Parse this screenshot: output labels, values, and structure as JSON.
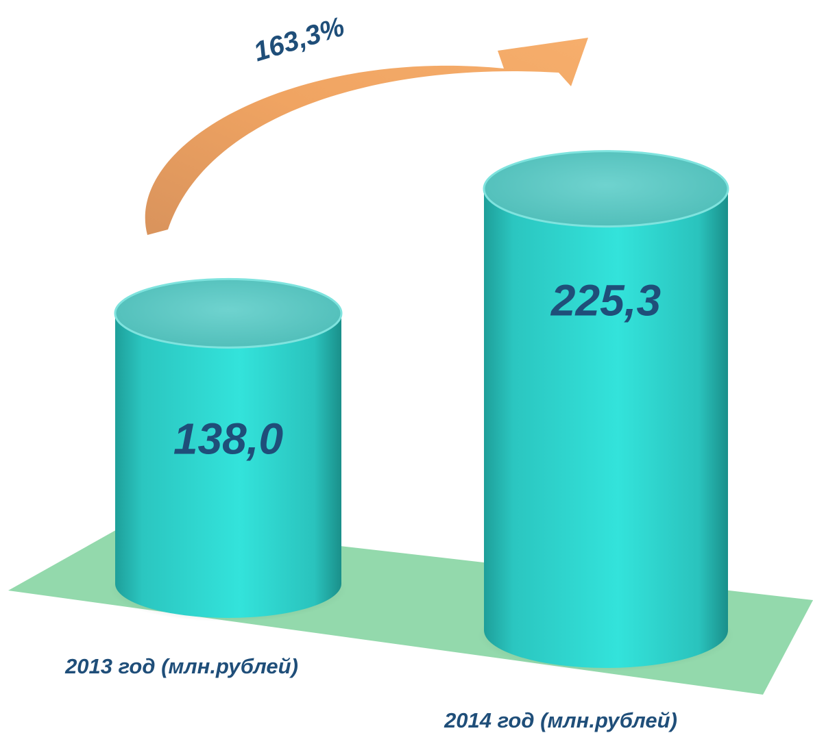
{
  "chart_data": {
    "type": "bar",
    "style": "3d-cylinder",
    "categories": [
      "2013 год (млн.рублей)",
      "2014 год (млн.рублей)"
    ],
    "values": [
      138.0,
      225.3
    ],
    "value_labels": [
      "138,0",
      "225,3"
    ],
    "growth_label": "163,3%",
    "title": "",
    "xlabel": "",
    "ylabel": "",
    "grid": false,
    "legend": "none"
  },
  "colors": {
    "cylinder": "#2FD6CF",
    "cylinder_dark": "#1E9F9A",
    "cylinder_top": "#5FC8C4",
    "floor": "#93D9AC",
    "arrow": "#F2A560",
    "arrow_dark": "#D9935C",
    "text": "#1F4E79"
  }
}
